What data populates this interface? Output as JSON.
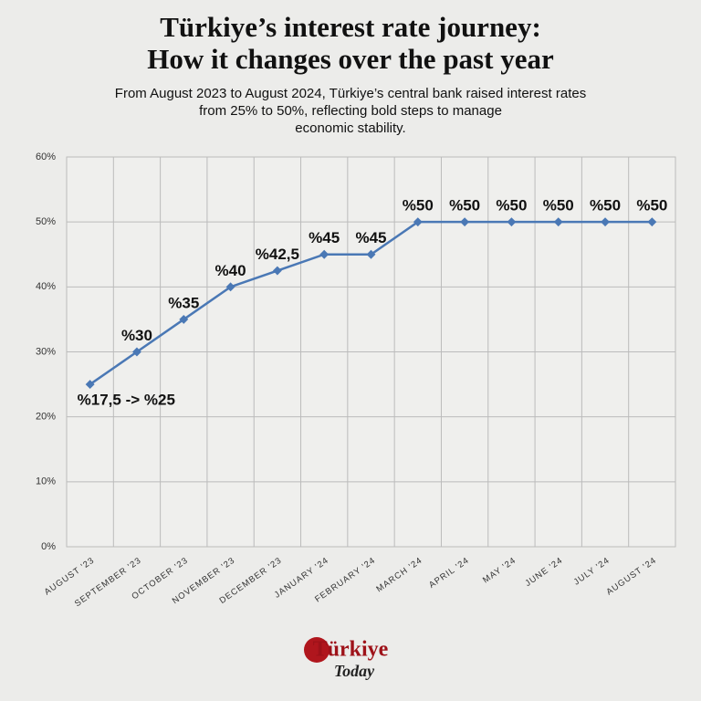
{
  "chart_data": {
    "type": "line",
    "title": [
      "Türkiye’s interest rate journey:",
      "How it changes over the past year"
    ],
    "subtitle": [
      "From August 2023 to August 2024, Türkiye’s central bank raised interest rates",
      "from 25% to 50%, reflecting bold steps to manage",
      "economic stability."
    ],
    "categories": [
      "AUGUST '23",
      "SEPTEMBER '23",
      "OCTOBER '23",
      "NOVEMBER '23",
      "DECEMBER '23",
      "JANUARY '24",
      "FEBRUARY '24",
      "MARCH '24",
      "APRIL '24",
      "MAY '24",
      "JUNE '24",
      "JULY '24",
      "AUGUST '24"
    ],
    "values": [
      25,
      30,
      35,
      40,
      42.5,
      45,
      45,
      50,
      50,
      50,
      50,
      50,
      50
    ],
    "value_labels": [
      "%17,5 -> %25",
      "%30",
      "%35",
      "%40",
      "%42,5",
      "%45",
      "%45",
      "%50",
      "%50",
      "%50",
      "%50",
      "%50",
      "%50"
    ],
    "color": "#4a78b5",
    "ylim": [
      0,
      60
    ],
    "yticks": [
      {
        "value": 0,
        "label": "0%"
      },
      {
        "value": 10,
        "label": "10%"
      },
      {
        "value": 20,
        "label": "20%"
      },
      {
        "value": 30,
        "label": "30%"
      },
      {
        "value": 40,
        "label": "40%"
      },
      {
        "value": 50,
        "label": "50%"
      },
      {
        "value": 60,
        "label": "60%"
      }
    ],
    "grid": true
  },
  "logo": {
    "line1": "Türkiye",
    "line2": "Today"
  }
}
